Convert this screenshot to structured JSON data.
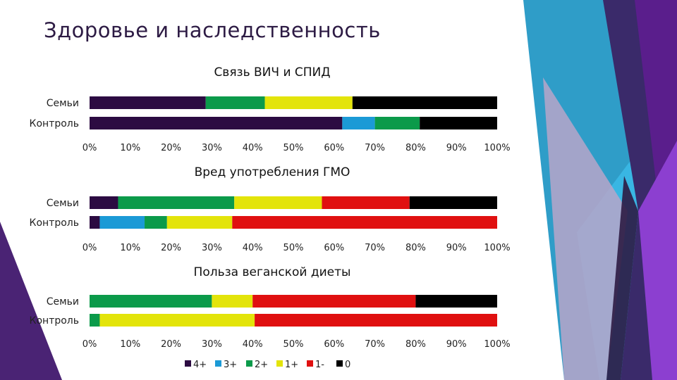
{
  "slide": {
    "title": "Здоровье и наследственность"
  },
  "colors": {
    "4+": "#2c0b42",
    "3+": "#1b9ad6",
    "2+": "#0b9a4a",
    "1+": "#e3e40a",
    "1-": "#e01010",
    "0": "#000000"
  },
  "legend": [
    "4+",
    "3+",
    "2+",
    "1+",
    "1-",
    "0"
  ],
  "x_ticks": [
    "0%",
    "10%",
    "20%",
    "30%",
    "40%",
    "50%",
    "60%",
    "70%",
    "80%",
    "90%",
    "100%"
  ],
  "chart_data": [
    {
      "type": "bar",
      "orientation": "horizontal",
      "stacked": true,
      "percent": true,
      "title": "Связь ВИЧ и СПИД",
      "categories": [
        "Семьи",
        "Контроль"
      ],
      "series": [
        {
          "name": "4+",
          "values": [
            28.5,
            62
          ]
        },
        {
          "name": "3+",
          "values": [
            0,
            8
          ]
        },
        {
          "name": "2+",
          "values": [
            14.5,
            11
          ]
        },
        {
          "name": "1+",
          "values": [
            21.5,
            0
          ]
        },
        {
          "name": "1-",
          "values": [
            0,
            0
          ]
        },
        {
          "name": "0",
          "values": [
            35.5,
            19
          ]
        }
      ],
      "xlim": [
        0,
        100
      ],
      "legend_position": "bottom"
    },
    {
      "type": "bar",
      "orientation": "horizontal",
      "stacked": true,
      "percent": true,
      "title": "Вред употребления ГМО",
      "categories": [
        "Семьи",
        "Контроль"
      ],
      "series": [
        {
          "name": "4+",
          "values": [
            7,
            2.5
          ]
        },
        {
          "name": "3+",
          "values": [
            0,
            11
          ]
        },
        {
          "name": "2+",
          "values": [
            28.5,
            5.5
          ]
        },
        {
          "name": "1+",
          "values": [
            21.5,
            16
          ]
        },
        {
          "name": "1-",
          "values": [
            21.5,
            65
          ]
        },
        {
          "name": "0",
          "values": [
            21.5,
            0
          ]
        }
      ],
      "xlim": [
        0,
        100
      ],
      "legend_position": "bottom"
    },
    {
      "type": "bar",
      "orientation": "horizontal",
      "stacked": true,
      "percent": true,
      "title": "Польза веганской диеты",
      "categories": [
        "Семьи",
        "Контроль"
      ],
      "series": [
        {
          "name": "4+",
          "values": [
            0,
            0
          ]
        },
        {
          "name": "3+",
          "values": [
            0,
            0
          ]
        },
        {
          "name": "2+",
          "values": [
            30,
            2.5
          ]
        },
        {
          "name": "1+",
          "values": [
            10,
            38
          ]
        },
        {
          "name": "1-",
          "values": [
            40,
            59.5
          ]
        },
        {
          "name": "0",
          "values": [
            20,
            0
          ]
        }
      ],
      "xlim": [
        0,
        100
      ],
      "legend_position": "bottom"
    }
  ]
}
